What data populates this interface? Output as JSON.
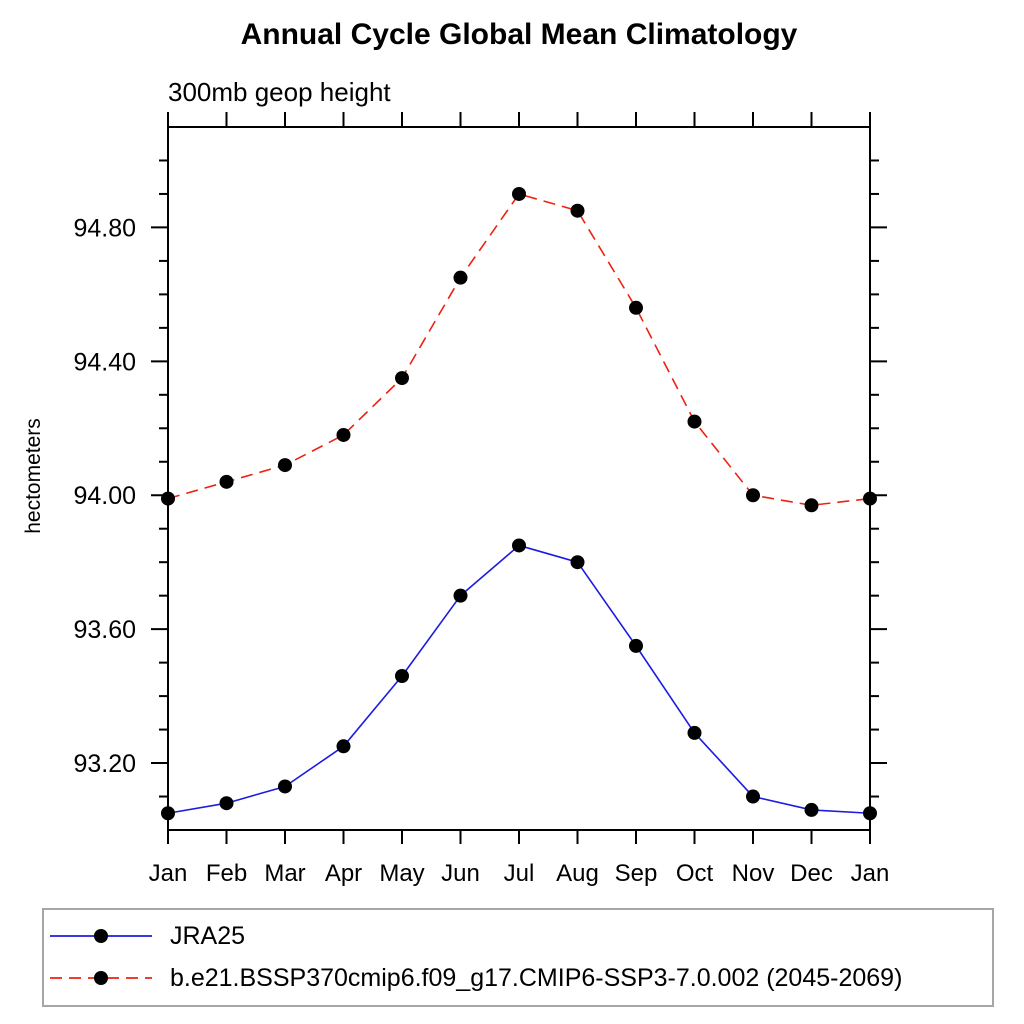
{
  "chart_data": {
    "type": "line",
    "title": "Annual Cycle Global Mean Climatology",
    "subtitle": "300mb geop height",
    "ylabel": "hectometers",
    "x_categories": [
      "Jan",
      "Feb",
      "Mar",
      "Apr",
      "May",
      "Jun",
      "Jul",
      "Aug",
      "Sep",
      "Oct",
      "Nov",
      "Dec",
      "Jan"
    ],
    "ylim": [
      93.0,
      95.1
    ],
    "y_major_ticks": [
      93.2,
      93.6,
      94.0,
      94.4,
      94.8
    ],
    "y_major_tick_labels": [
      "93.20",
      "93.60",
      "94.00",
      "94.40",
      "94.80"
    ],
    "y_minor_step": 0.1,
    "grid": false,
    "legend_position": "bottom-left-box",
    "marker": "filled-circle",
    "marker_color": "#000000",
    "frame_color": "#000000",
    "series": [
      {
        "name": "JRA25",
        "color": "#1c1ce0",
        "line_style": "solid",
        "values": [
          93.05,
          93.08,
          93.13,
          93.25,
          93.46,
          93.7,
          93.85,
          93.8,
          93.55,
          93.29,
          93.1,
          93.06,
          93.05
        ]
      },
      {
        "name": "b.e21.BSSP370cmip6.f09_g17.CMIP6-SSP3-7.0.002 (2045-2069)",
        "color": "#ee2211",
        "line_style": "dashed",
        "values": [
          93.99,
          94.04,
          94.09,
          94.18,
          94.35,
          94.65,
          94.9,
          94.85,
          94.56,
          94.22,
          94.0,
          93.97,
          93.99
        ]
      }
    ]
  }
}
